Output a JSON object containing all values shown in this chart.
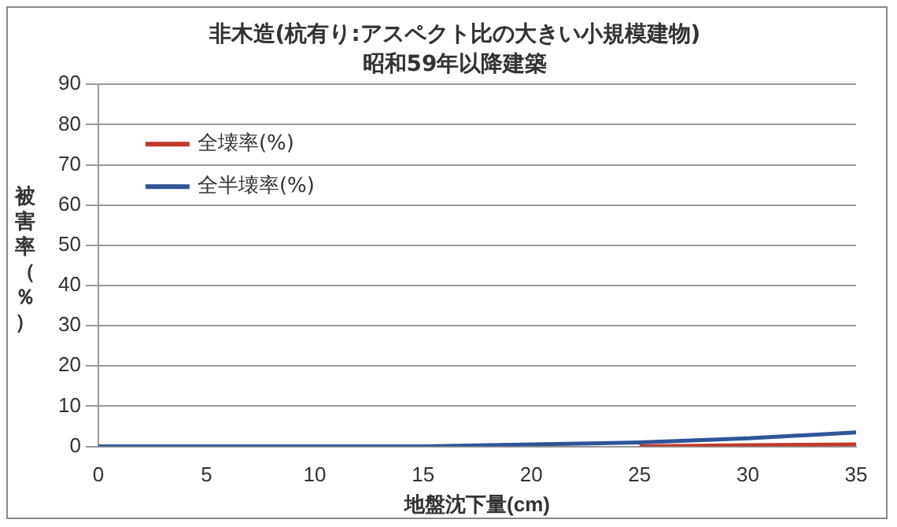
{
  "chart_data": {
    "type": "line",
    "title": "非木造(杭有り:アスペクト比の大きい小規模建物)",
    "subtitle": "昭和59年以降建築",
    "xlabel": "地盤沈下量(cm)",
    "ylabel": "被害率（％）",
    "x": [
      0,
      5,
      10,
      15,
      20,
      25,
      30,
      35
    ],
    "series": [
      {
        "name": "全壊率(%)",
        "color": "#c0392b",
        "values": [
          null,
          null,
          null,
          null,
          null,
          0,
          0.3,
          0.5
        ]
      },
      {
        "name": "全半壊率(%)",
        "color": "#2f5597",
        "values": [
          0,
          0,
          0,
          0,
          0.5,
          1,
          2,
          3.5
        ]
      }
    ],
    "xlim": [
      0,
      35
    ],
    "xticks": [
      0,
      5,
      10,
      15,
      20,
      25,
      30,
      35
    ],
    "ylim": [
      0,
      90
    ],
    "yticks": [
      0,
      10,
      20,
      30,
      40,
      50,
      60,
      70,
      80,
      90
    ],
    "grid": "y",
    "legend": "top left",
    "marker": "none",
    "line_style": "solid"
  }
}
